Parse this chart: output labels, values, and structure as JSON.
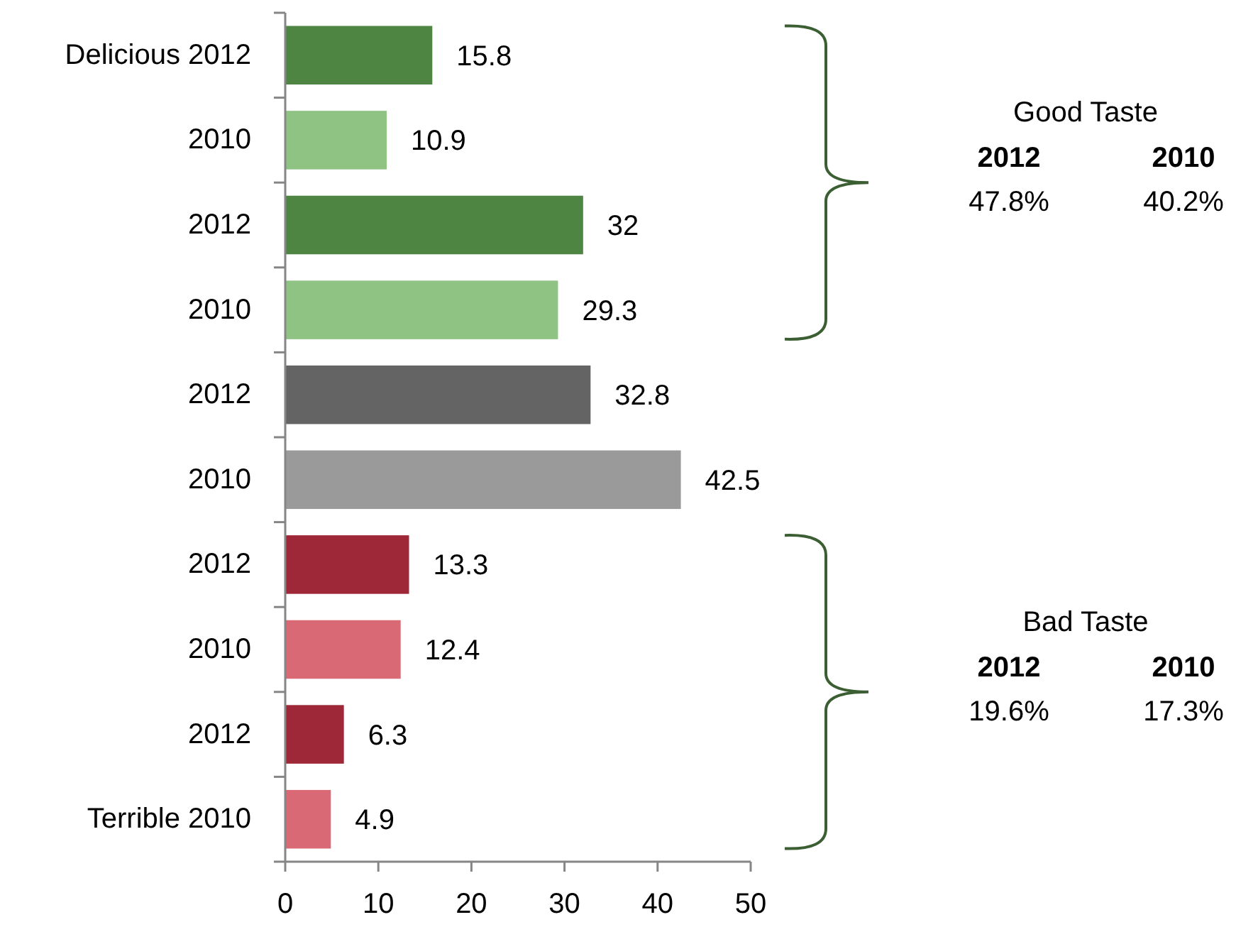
{
  "chart_data": {
    "type": "bar",
    "orientation": "horizontal",
    "categories": [
      "Delicious 2012",
      "2010",
      "2012",
      "2010",
      "2012",
      "2010",
      "2012",
      "2010",
      "2012",
      "Terrible 2010"
    ],
    "values": [
      15.8,
      10.9,
      32,
      29.3,
      32.8,
      42.5,
      13.3,
      12.4,
      6.3,
      4.9
    ],
    "colors": [
      "#4e8542",
      "#8fc384",
      "#4e8542",
      "#8fc384",
      "#646464",
      "#9a9a9a",
      "#9e2837",
      "#d96a75",
      "#9e2837",
      "#d96a75"
    ],
    "xlim": [
      0,
      50
    ],
    "xticks": [
      0,
      10,
      20,
      30,
      40,
      50
    ],
    "data_labels": true,
    "annotations": [
      "Good Taste",
      "2012",
      "2010",
      "47.8%",
      "40.2%",
      "Bad Taste",
      "2012",
      "2010",
      "19.6%",
      "17.3%"
    ]
  }
}
